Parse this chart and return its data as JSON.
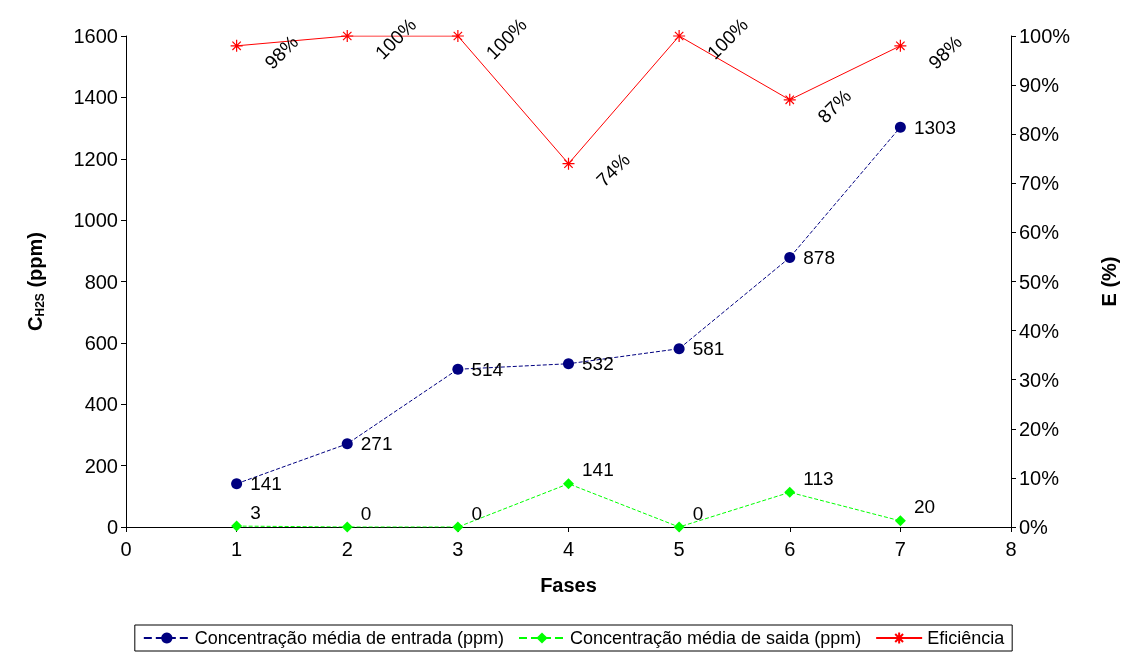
{
  "chart_data": {
    "type": "line",
    "xlabel": "Fases",
    "ylabel": "C$_{H2S}$ (ppm)",
    "y2label": "E (%)",
    "x": [
      1,
      2,
      3,
      4,
      5,
      6,
      7
    ],
    "xlim": [
      0,
      8
    ],
    "xticks": [
      0,
      1,
      2,
      3,
      4,
      5,
      6,
      7,
      8
    ],
    "ylim": [
      0,
      1600
    ],
    "yticks": [
      0,
      200,
      400,
      600,
      800,
      1000,
      1200,
      1400,
      1600
    ],
    "y2lim": [
      0,
      100
    ],
    "y2ticks": [
      {
        "value": 0,
        "label": "0%"
      },
      {
        "value": 10,
        "label": "10%"
      },
      {
        "value": 20,
        "label": "20%"
      },
      {
        "value": 30,
        "label": "30%"
      },
      {
        "value": 40,
        "label": "40%"
      },
      {
        "value": 50,
        "label": "50%"
      },
      {
        "value": 60,
        "label": "60%"
      },
      {
        "value": 70,
        "label": "70%"
      },
      {
        "value": 80,
        "label": "80%"
      },
      {
        "value": 90,
        "label": "90%"
      },
      {
        "value": 100,
        "label": "100%"
      }
    ],
    "grid": false,
    "legend": "bottom",
    "series": [
      {
        "name": "Concentração média de entrada (ppm)",
        "color": "#000080",
        "marker": "circle",
        "line_style": "dashed",
        "values": [
          141,
          271,
          514,
          532,
          581,
          878,
          1303
        ],
        "value_labels": [
          "141",
          "271",
          "514",
          "532",
          "581",
          "878",
          "1303"
        ]
      },
      {
        "name": "Concentração média de saida (ppm)",
        "color": "#00ff00",
        "marker": "diamond",
        "line_style": "dashed",
        "values": [
          3,
          0,
          0,
          141,
          0,
          113,
          20
        ],
        "value_labels": [
          "3",
          "0",
          "0",
          "141",
          "0",
          "113",
          "20"
        ]
      },
      {
        "name": "Eficiência",
        "color": "#ff0000",
        "marker": "cross",
        "line_style": "solid",
        "axis": "y2",
        "values": [
          98,
          100,
          100,
          74,
          100,
          87,
          98
        ],
        "value_labels": [
          "98%",
          "100%",
          "100%",
          "74%",
          "100%",
          "87%",
          "98%"
        ]
      }
    ]
  }
}
